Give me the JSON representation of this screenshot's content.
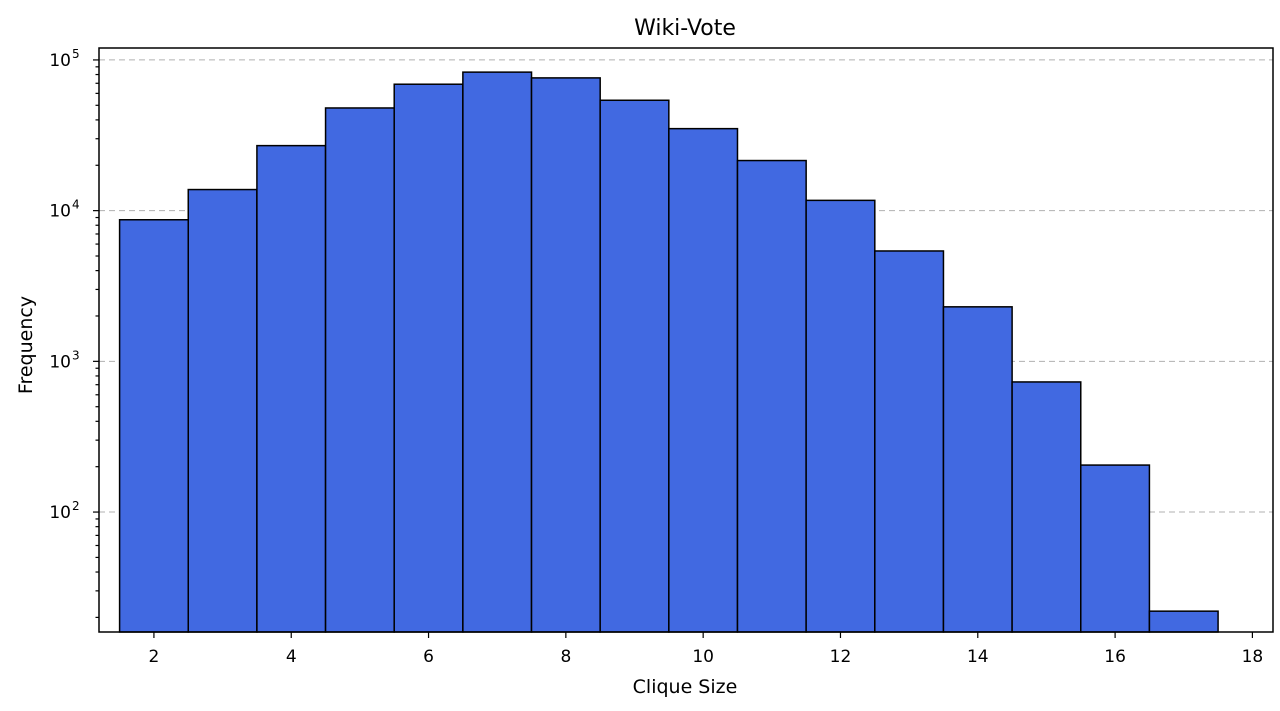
{
  "chart_data": {
    "type": "bar",
    "title": "Wiki-Vote",
    "xlabel": "Clique Size",
    "ylabel": "Frequency",
    "yscale": "log",
    "grid": "y-dashed",
    "bar_color": "#4169e1",
    "xlim": [
      1.2,
      18.3
    ],
    "ylim": [
      16,
      120000
    ],
    "x_ticks": [
      2,
      4,
      6,
      8,
      10,
      12,
      14,
      16,
      18
    ],
    "y_ticks": [
      {
        "base": "10",
        "exp": "2",
        "value": 100
      },
      {
        "base": "10",
        "exp": "3",
        "value": 1000
      },
      {
        "base": "10",
        "exp": "4",
        "value": 10000
      },
      {
        "base": "10",
        "exp": "5",
        "value": 100000
      }
    ],
    "bins": [
      {
        "x": 2,
        "value": 8700
      },
      {
        "x": 3,
        "value": 13800
      },
      {
        "x": 4,
        "value": 27000
      },
      {
        "x": 5,
        "value": 48000
      },
      {
        "x": 6,
        "value": 69000
      },
      {
        "x": 7,
        "value": 83000
      },
      {
        "x": 8,
        "value": 76000
      },
      {
        "x": 9,
        "value": 54000
      },
      {
        "x": 10,
        "value": 35000
      },
      {
        "x": 11,
        "value": 21500
      },
      {
        "x": 12,
        "value": 11700
      },
      {
        "x": 13,
        "value": 5400
      },
      {
        "x": 14,
        "value": 2300
      },
      {
        "x": 15,
        "value": 730
      },
      {
        "x": 16,
        "value": 205
      },
      {
        "x": 17,
        "value": 22
      }
    ]
  }
}
